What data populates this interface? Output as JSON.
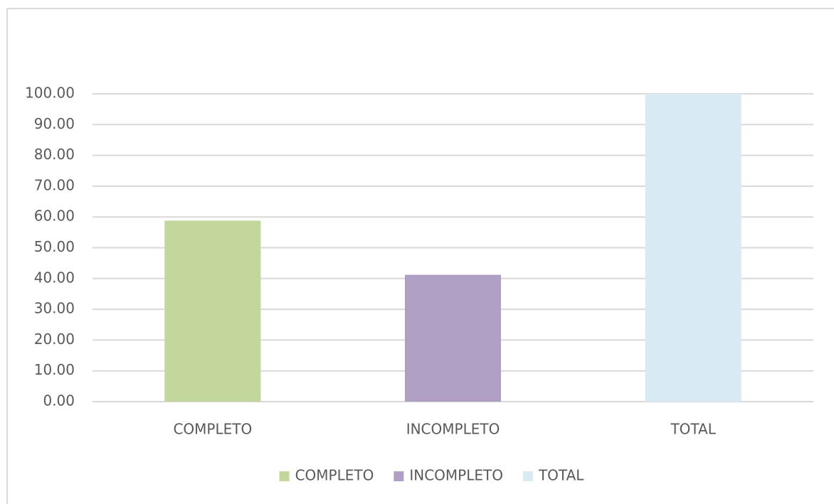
{
  "chart_data": {
    "type": "bar",
    "categories": [
      "COMPLETO",
      "INCOMPLETO",
      "TOTAL"
    ],
    "values": [
      58.8,
      41.2,
      100
    ],
    "colors": [
      "#c3d69b",
      "#b09fc5",
      "#d9ebf2"
    ],
    "ylim": [
      0,
      100
    ],
    "yticks": [
      {
        "value": 0,
        "label": "0.00"
      },
      {
        "value": 10,
        "label": "10.00"
      },
      {
        "value": 20,
        "label": "20.00"
      },
      {
        "value": 30,
        "label": "30.00"
      },
      {
        "value": 40,
        "label": "40.00"
      },
      {
        "value": 50,
        "label": "50.00"
      },
      {
        "value": 60,
        "label": "60.00"
      },
      {
        "value": 70,
        "label": "70.00"
      },
      {
        "value": 80,
        "label": "80.00"
      },
      {
        "value": 90,
        "label": "90.00"
      },
      {
        "value": 100,
        "label": "100.00"
      }
    ],
    "grid": true,
    "legend": "bottom"
  }
}
